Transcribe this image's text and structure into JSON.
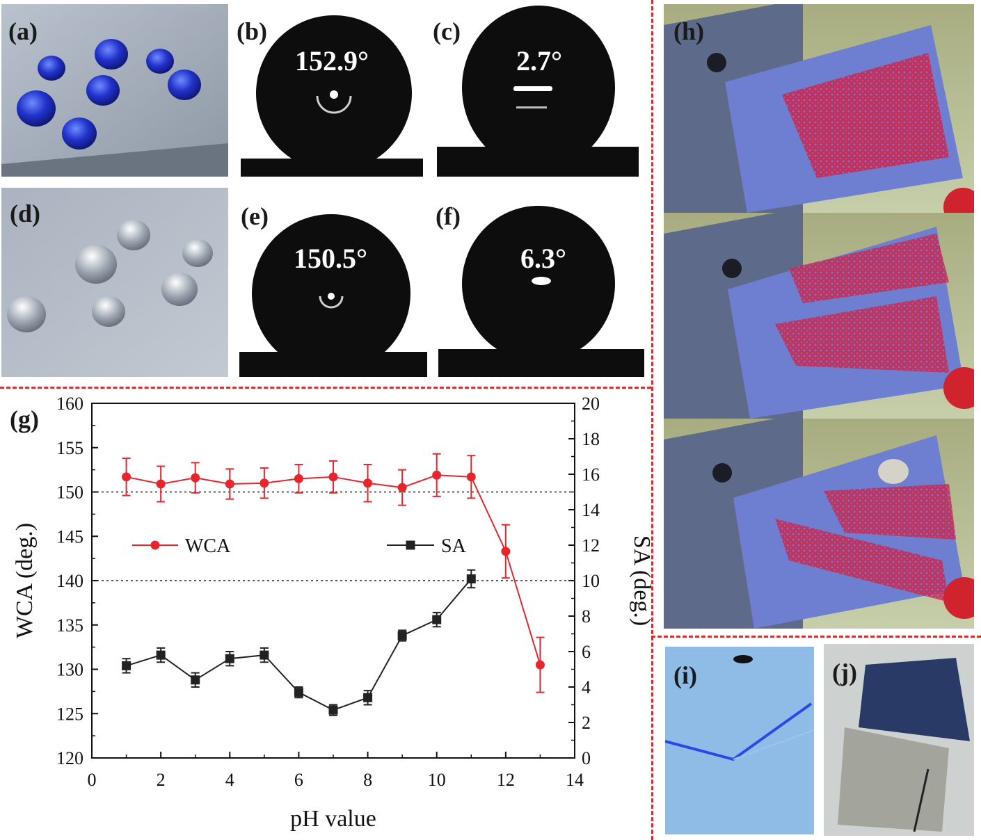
{
  "panels": {
    "a": {
      "label": "(a)"
    },
    "b": {
      "label": "(b)",
      "angle": "152.9°"
    },
    "c": {
      "label": "(c)",
      "angle": "2.7°"
    },
    "d": {
      "label": "(d)"
    },
    "e": {
      "label": "(e)",
      "angle": "150.5°"
    },
    "f": {
      "label": "(f)",
      "angle": "6.3°"
    },
    "g": {
      "label": "(g)"
    },
    "h": {
      "label": "(h)"
    },
    "i": {
      "label": "(i)"
    },
    "j": {
      "label": "(j)"
    }
  },
  "colors": {
    "wca": "#e8242d",
    "sa": "#222222",
    "divider": "#d32f2f"
  },
  "chart_data": {
    "type": "line",
    "xlabel": "pH value",
    "ylabel_left": "WCA (deg.)",
    "ylabel_right": "SA (deg.)",
    "xlim": [
      0,
      14
    ],
    "ylim_left": [
      120,
      160
    ],
    "ylim_right": [
      0,
      20
    ],
    "xticks": [
      0,
      2,
      4,
      6,
      8,
      10,
      12,
      14
    ],
    "yticks_left": [
      120,
      125,
      130,
      135,
      140,
      145,
      150,
      155,
      160
    ],
    "yticks_right": [
      0,
      2,
      4,
      6,
      8,
      10,
      12,
      14,
      16,
      18,
      20
    ],
    "reference_lines": [
      {
        "axis": "left",
        "value": 150
      },
      {
        "axis": "left",
        "value": 140
      }
    ],
    "series": [
      {
        "name": "WCA",
        "axis": "left",
        "marker": "circle",
        "x": [
          1,
          2,
          3,
          4,
          5,
          6,
          7,
          8,
          9,
          10,
          11,
          12,
          13
        ],
        "y": [
          151.7,
          150.9,
          151.6,
          150.9,
          151.0,
          151.5,
          151.7,
          151.0,
          150.5,
          151.9,
          151.7,
          143.3,
          130.5
        ],
        "err": [
          2.1,
          2.0,
          1.7,
          1.7,
          1.7,
          1.6,
          1.8,
          2.1,
          2.0,
          2.4,
          2.4,
          3.0,
          3.1
        ]
      },
      {
        "name": "SA",
        "axis": "right",
        "marker": "square",
        "x": [
          1,
          2,
          3,
          4,
          5,
          6,
          7,
          8,
          9,
          10,
          11
        ],
        "y": [
          5.2,
          5.8,
          4.4,
          5.6,
          5.8,
          3.7,
          2.7,
          3.4,
          6.9,
          7.8,
          10.1
        ],
        "err": [
          0.4,
          0.4,
          0.4,
          0.4,
          0.4,
          0.3,
          0.3,
          0.4,
          0.3,
          0.4,
          0.5
        ]
      }
    ]
  }
}
